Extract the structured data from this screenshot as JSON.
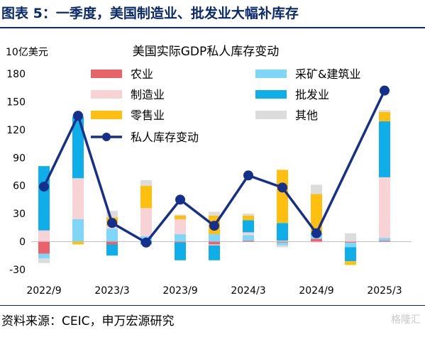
{
  "header": {
    "title": "图表 5：一季度，美国制造业、批发业大幅补库存"
  },
  "footer": {
    "source": "资料来源：CEIC，申万宏源研究",
    "watermark": "格隆汇"
  },
  "colors": {
    "agriculture": "#e8636a",
    "manufacturing": "#f8d3d6",
    "retail": "#fdbf10",
    "mining_construction": "#7fd6f7",
    "wholesale": "#10aee8",
    "other": "#dcdcdc",
    "line": "#152f8c"
  },
  "chart_data": {
    "type": "bar",
    "title": "美国实际GDP私人库存变动",
    "ylabel": "10亿美元",
    "ylim": [
      -30,
      180
    ],
    "yticks": [
      -30,
      0,
      30,
      60,
      90,
      120,
      150,
      180
    ],
    "xticklabels": [
      "2022/9",
      "2023/3",
      "2023/9",
      "2024/3",
      "2024/9",
      "2025/3"
    ],
    "categories": [
      "2022Q3",
      "2022Q4",
      "2023Q1",
      "2023Q2",
      "2023Q3",
      "2023Q4",
      "2024Q1",
      "2024Q2",
      "2024Q3",
      "2024Q4",
      "2025Q1"
    ],
    "legend": [
      {
        "key": "agriculture",
        "label": "农业"
      },
      {
        "key": "mining_construction",
        "label": "采矿&建筑业"
      },
      {
        "key": "manufacturing",
        "label": "制造业"
      },
      {
        "key": "wholesale",
        "label": "批发业"
      },
      {
        "key": "retail",
        "label": "零售业"
      },
      {
        "key": "other",
        "label": "其他"
      },
      {
        "key": "line",
        "label": "私人库存变动"
      }
    ],
    "series": [
      {
        "name": "农业",
        "key": "agriculture",
        "values": [
          -13,
          0,
          -3,
          1,
          -1,
          -3,
          1,
          -1,
          3,
          -1,
          1
        ]
      },
      {
        "name": "采矿&建筑业",
        "key": "mining_construction",
        "values": [
          -5,
          24,
          14,
          5,
          8,
          8,
          6,
          -3,
          4,
          -5,
          3
        ]
      },
      {
        "name": "制造业",
        "key": "manufacturing",
        "values": [
          12,
          44,
          3,
          30,
          16,
          -1,
          3,
          1,
          -1,
          0,
          65
        ]
      },
      {
        "name": "批发业",
        "key": "wholesale",
        "values": [
          69,
          66,
          -12,
          -3,
          -19,
          -16,
          13,
          19,
          2,
          -15,
          60
        ]
      },
      {
        "name": "零售业",
        "key": "retail",
        "values": [
          0,
          -3,
          9,
          24,
          4,
          20,
          5,
          57,
          42,
          -4,
          10
        ]
      },
      {
        "name": "其他",
        "key": "other",
        "values": [
          -5,
          3,
          7,
          6,
          1,
          4,
          2,
          -2,
          10,
          9,
          2
        ]
      },
      {
        "name": "私人库存变动",
        "key": "line",
        "type": "line",
        "values": [
          59,
          135,
          20,
          -1,
          45,
          17,
          71,
          58,
          9,
          null,
          162
        ]
      }
    ],
    "line_values": [
      59,
      135,
      20,
      -1,
      45,
      17,
      71,
      58,
      9,
      162
    ]
  }
}
